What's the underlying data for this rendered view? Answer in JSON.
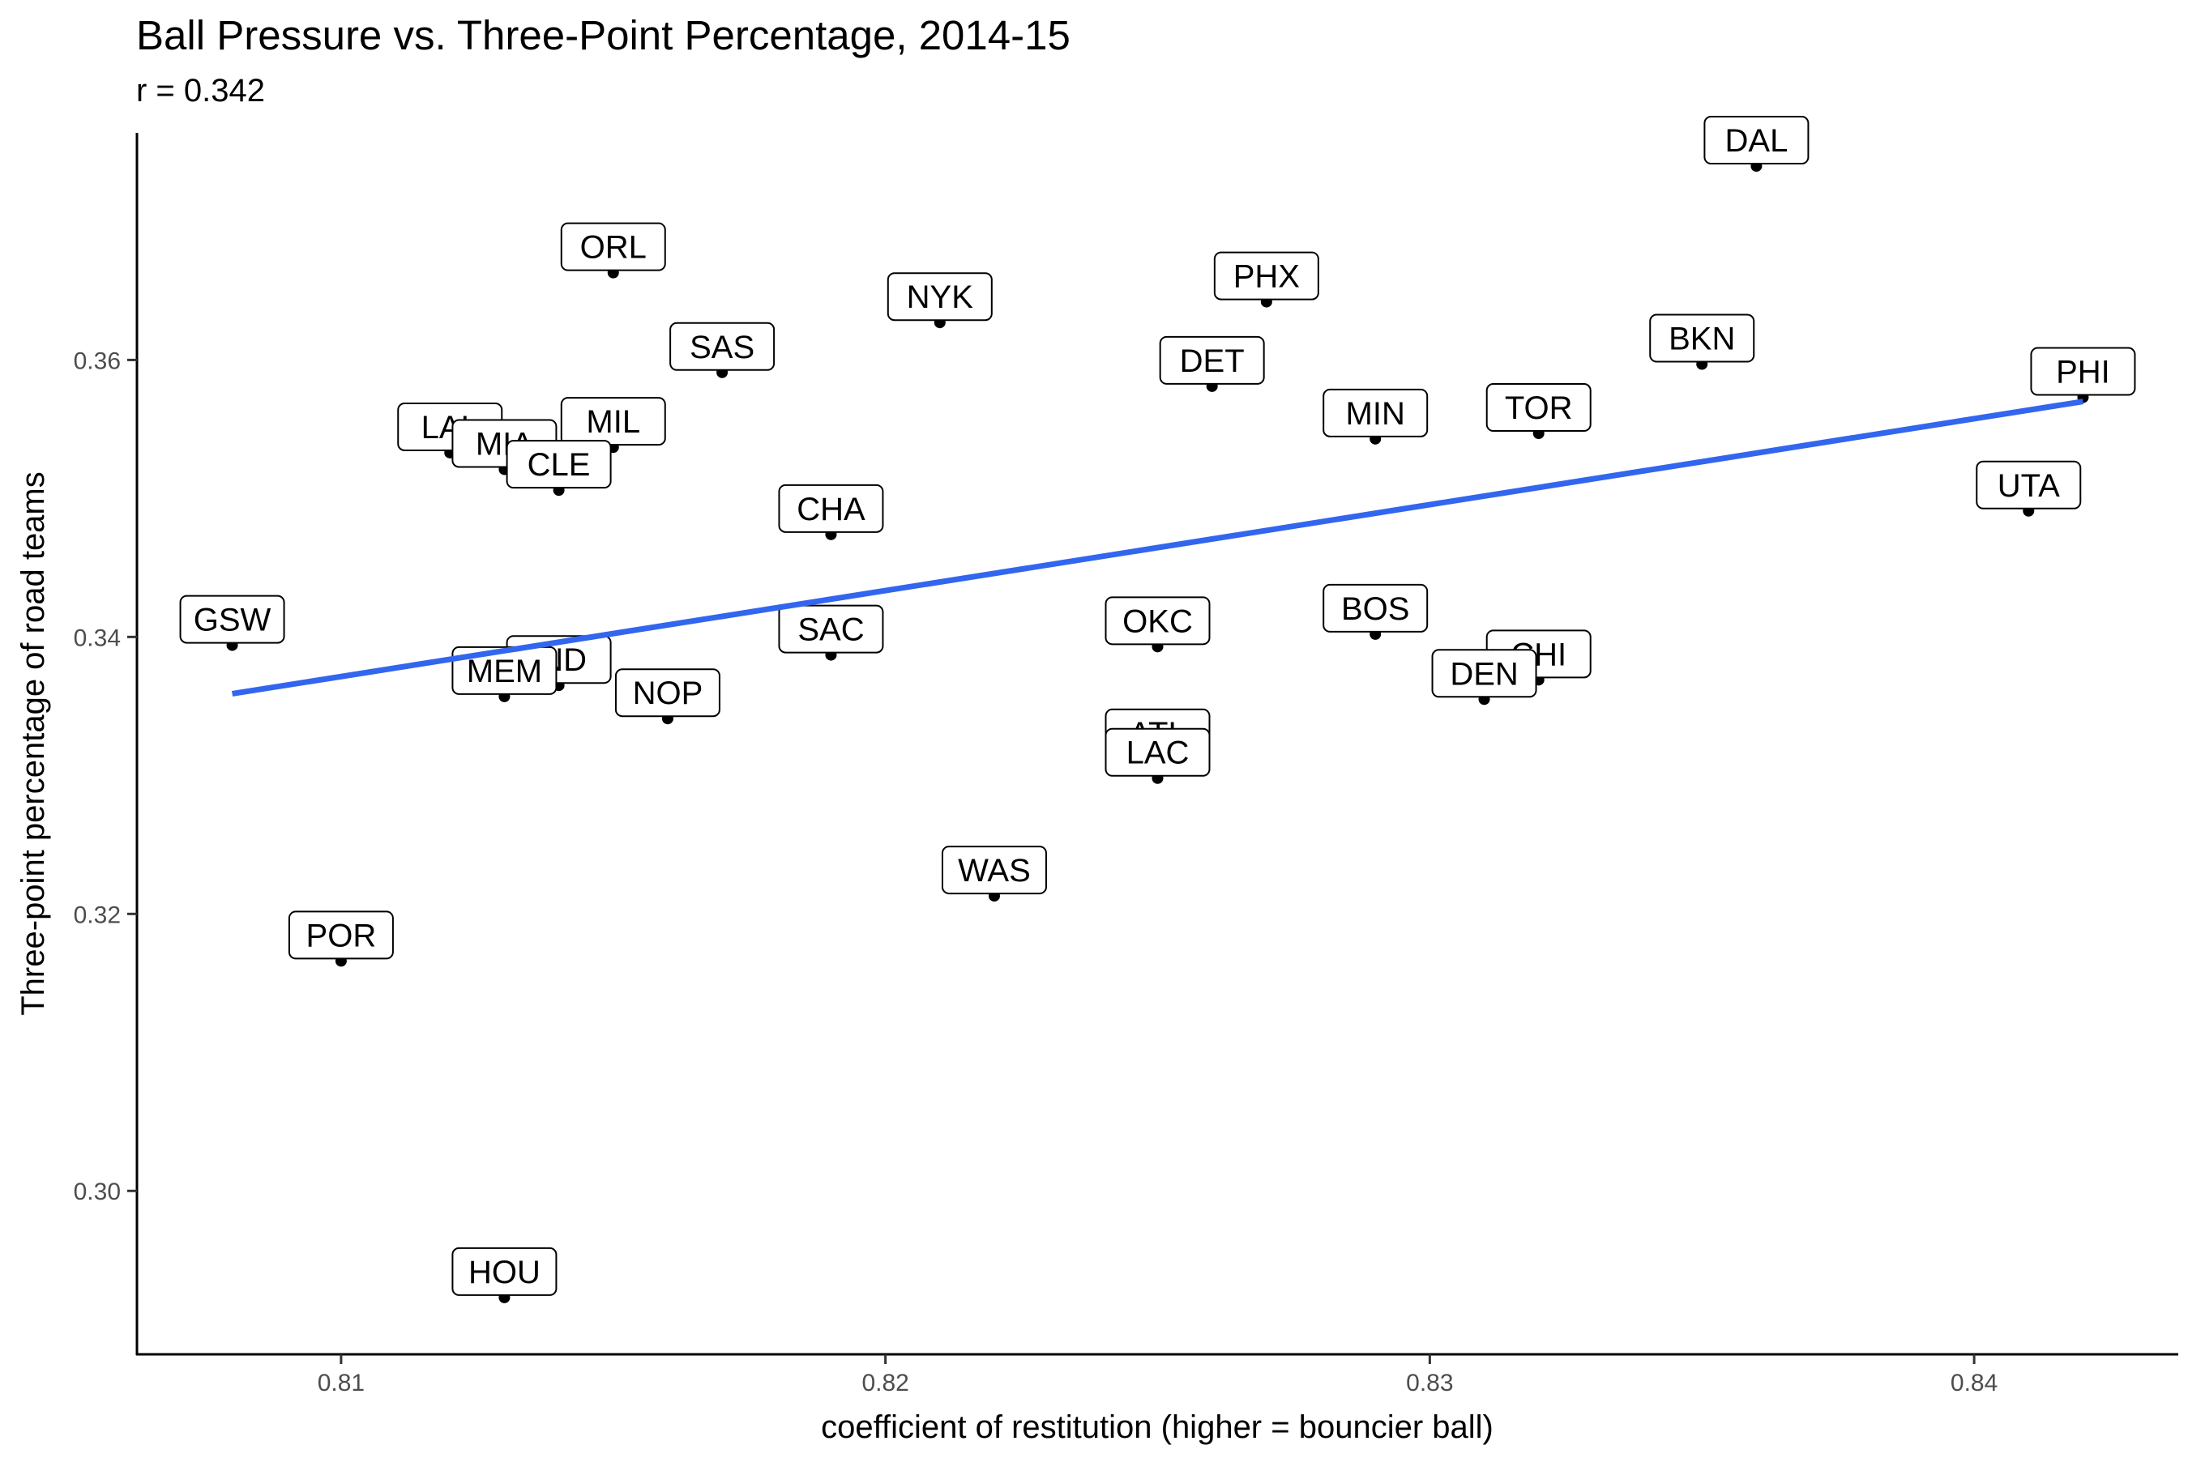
{
  "chart_data": {
    "type": "scatter",
    "title": "Ball Pressure vs. Three-Point Percentage, 2014-15",
    "subtitle": "r = 0.342",
    "xlabel": "coefficient of restitution (higher = bouncier ball)",
    "ylabel": "Three-point percentage of road teams",
    "xlim": [
      0.80625,
      0.84375
    ],
    "ylim": [
      0.2882,
      0.3764
    ],
    "x_ticks": [
      0.81,
      0.82,
      0.83,
      0.84
    ],
    "x_tick_labels": [
      "0.81",
      "0.82",
      "0.83",
      "0.84"
    ],
    "y_ticks": [
      0.3,
      0.32,
      0.34,
      0.36
    ],
    "y_tick_labels": [
      "0.30",
      "0.32",
      "0.34",
      "0.36"
    ],
    "grid": false,
    "point_color": "#000000",
    "trend_color": "#3366ee",
    "trend_line": {
      "x": [
        0.808,
        0.842
      ],
      "y": [
        0.3359,
        0.357
      ]
    },
    "points": [
      {
        "label": "DAL",
        "x": 0.836,
        "y": 0.374
      },
      {
        "label": "ORL",
        "x": 0.815,
        "y": 0.3663
      },
      {
        "label": "PHX",
        "x": 0.827,
        "y": 0.3642
      },
      {
        "label": "NYK",
        "x": 0.821,
        "y": 0.3627
      },
      {
        "label": "BKN",
        "x": 0.835,
        "y": 0.3597
      },
      {
        "label": "SAS",
        "x": 0.817,
        "y": 0.3591
      },
      {
        "label": "DET",
        "x": 0.826,
        "y": 0.3581
      },
      {
        "label": "PHI",
        "x": 0.842,
        "y": 0.3573
      },
      {
        "label": "TOR",
        "x": 0.832,
        "y": 0.3547
      },
      {
        "label": "MIN",
        "x": 0.829,
        "y": 0.3543
      },
      {
        "label": "MIL",
        "x": 0.815,
        "y": 0.3537
      },
      {
        "label": "LAL",
        "x": 0.812,
        "y": 0.3533
      },
      {
        "label": "MIA",
        "x": 0.813,
        "y": 0.3521
      },
      {
        "label": "CLE",
        "x": 0.814,
        "y": 0.3506
      },
      {
        "label": "UTA",
        "x": 0.841,
        "y": 0.3491
      },
      {
        "label": "CHA",
        "x": 0.819,
        "y": 0.3474
      },
      {
        "label": "BOS",
        "x": 0.829,
        "y": 0.3402
      },
      {
        "label": "GSW",
        "x": 0.808,
        "y": 0.3394
      },
      {
        "label": "OKC",
        "x": 0.825,
        "y": 0.3393
      },
      {
        "label": "SAC",
        "x": 0.819,
        "y": 0.3387
      },
      {
        "label": "IND",
        "x": 0.814,
        "y": 0.3365
      },
      {
        "label": "CHI",
        "x": 0.832,
        "y": 0.3369
      },
      {
        "label": "MEM",
        "x": 0.813,
        "y": 0.3357
      },
      {
        "label": "DEN",
        "x": 0.831,
        "y": 0.3355
      },
      {
        "label": "NOP",
        "x": 0.816,
        "y": 0.3341
      },
      {
        "label": "ATL",
        "x": 0.825,
        "y": 0.3312
      },
      {
        "label": "LAC",
        "x": 0.825,
        "y": 0.3298
      },
      {
        "label": "WAS",
        "x": 0.822,
        "y": 0.3213
      },
      {
        "label": "POR",
        "x": 0.81,
        "y": 0.3166
      },
      {
        "label": "HOU",
        "x": 0.813,
        "y": 0.2923
      }
    ]
  }
}
